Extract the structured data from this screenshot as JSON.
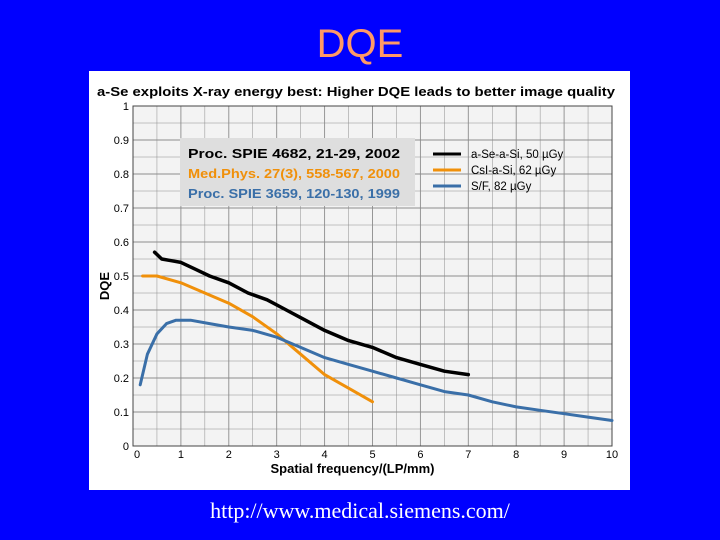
{
  "slide": {
    "title": "DQE",
    "footer_url": "http://www.medical.siemens.com/"
  },
  "colors": {
    "background": "#0000ff",
    "title": "#ff9966",
    "plot_bg": "#f3f3f3",
    "grid": "#8c8c8c",
    "ref_box_bg": "#dedede"
  },
  "chart_data": {
    "type": "line",
    "title": "a-Se exploits X-ray energy best: Higher DQE leads to better image quality",
    "xlabel": "Spatial frequency/(LP/mm)",
    "ylabel": "DQE",
    "xlim": [
      0,
      10
    ],
    "ylim": [
      0,
      1
    ],
    "grid": true,
    "legend_position": "top-right",
    "x_ticks": [
      "0",
      "1",
      "2",
      "3",
      "4",
      "5",
      "6",
      "7",
      "8",
      "9",
      "10"
    ],
    "y_ticks": [
      "0",
      "0.1",
      "0.2",
      "0.3",
      "0.4",
      "0.5",
      "0.6",
      "0.7",
      "0.8",
      "0.9",
      "1"
    ],
    "references": [
      {
        "text": "Proc. SPIE 4682, 21-29, 2002",
        "color": "#000000"
      },
      {
        "text": "Med.Phys. 27(3), 558-567, 2000",
        "color": "#f0900a"
      },
      {
        "text": "Proc. SPIE 3659, 120-130, 1999",
        "color": "#3a6fa8"
      }
    ],
    "series": [
      {
        "name": "a-Se-a-Si, 50 µGy",
        "color": "#000000",
        "x": [
          0.45,
          0.6,
          0.8,
          1.0,
          1.3,
          1.6,
          2.0,
          2.4,
          2.8,
          3.2,
          3.6,
          4.0,
          4.5,
          5.0,
          5.5,
          6.0,
          6.5,
          7.0
        ],
        "y": [
          0.57,
          0.55,
          0.545,
          0.54,
          0.52,
          0.5,
          0.48,
          0.45,
          0.43,
          0.4,
          0.37,
          0.34,
          0.31,
          0.29,
          0.26,
          0.24,
          0.22,
          0.21
        ]
      },
      {
        "name": "CsI-a-Si, 62 µGy",
        "color": "#f0900a",
        "x": [
          0.2,
          0.5,
          1.0,
          1.5,
          2.0,
          2.5,
          3.0,
          3.5,
          4.0,
          4.5,
          5.0
        ],
        "y": [
          0.5,
          0.5,
          0.48,
          0.45,
          0.42,
          0.38,
          0.33,
          0.27,
          0.21,
          0.17,
          0.13
        ]
      },
      {
        "name": "S/F, 82 µGy",
        "color": "#3a6fa8",
        "x": [
          0.15,
          0.3,
          0.5,
          0.7,
          0.9,
          1.2,
          1.6,
          2.0,
          2.5,
          3.0,
          3.5,
          4.0,
          4.5,
          5.0,
          5.5,
          6.0,
          6.5,
          7.0,
          7.5,
          8.0,
          8.5,
          9.0,
          9.5,
          10.0
        ],
        "y": [
          0.18,
          0.27,
          0.33,
          0.36,
          0.37,
          0.37,
          0.36,
          0.35,
          0.34,
          0.32,
          0.29,
          0.26,
          0.24,
          0.22,
          0.2,
          0.18,
          0.16,
          0.15,
          0.13,
          0.115,
          0.105,
          0.095,
          0.085,
          0.075
        ]
      }
    ]
  }
}
